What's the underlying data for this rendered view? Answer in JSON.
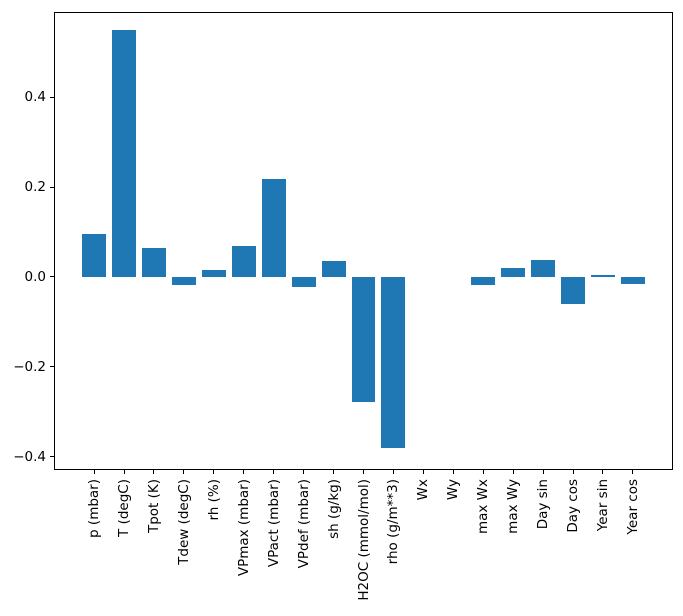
{
  "chart_data": {
    "type": "bar",
    "title": "",
    "xlabel": "",
    "ylabel": "",
    "categories": [
      "p (mbar)",
      "T (degC)",
      "Tpot (K)",
      "Tdew (degC)",
      "rh (%)",
      "VPmax (mbar)",
      "VPact (mbar)",
      "VPdef (mbar)",
      "sh (g/kg)",
      "H2OC (mmol/mol)",
      "rho (g/m**3)",
      "Wx",
      "Wy",
      "max Wx",
      "max Wy",
      "Day sin",
      "Day cos",
      "Year sin",
      "Year cos"
    ],
    "values": [
      0.096,
      0.551,
      0.064,
      -0.017,
      0.015,
      0.068,
      0.219,
      -0.023,
      0.035,
      -0.278,
      -0.381,
      0.0,
      0.0,
      -0.018,
      0.019,
      0.037,
      -0.06,
      0.0045,
      -0.015
    ],
    "bar_color": "#1f77b4",
    "bar_width_fraction": 0.8,
    "ylim": [
      -0.43,
      0.59
    ],
    "yticks": [
      0.4,
      0.2,
      0.0,
      -0.2,
      -0.4
    ],
    "ytick_labels": [
      "0.4",
      "0.2",
      "0.0",
      "−0.2",
      "−0.4"
    ],
    "xtick_rotation_deg": 90,
    "grid": false,
    "legend": "none",
    "spine_color": "#000000",
    "background_color": "#ffffff"
  }
}
